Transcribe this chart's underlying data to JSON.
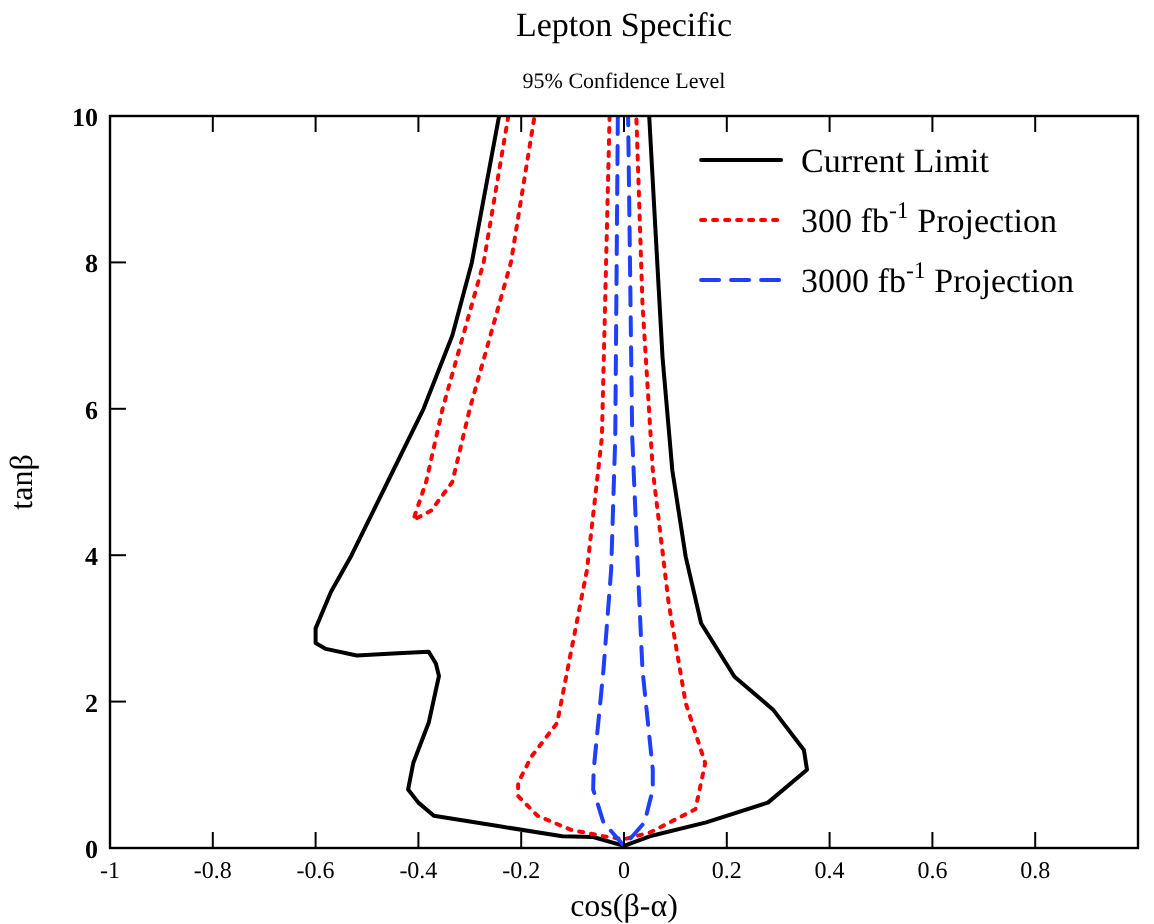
{
  "chart_data": {
    "type": "line",
    "title": "Lepton Specific",
    "subtitle": "95% Confidence Level",
    "xlabel": "cos(β-α)",
    "ylabel": "tanβ",
    "xlim": [
      -1,
      1
    ],
    "ylim": [
      0,
      10
    ],
    "xticks": [
      -1,
      -0.8,
      -0.6,
      -0.4,
      -0.2,
      0,
      0.2,
      0.4,
      0.6,
      0.8
    ],
    "yticks": [
      0,
      2,
      4,
      6,
      8,
      10
    ],
    "legend": "top right",
    "grid": false,
    "series": [
      {
        "name": "Current Limit",
        "color": "#000000",
        "line_style": "solid",
        "x": [
          -0.243,
          -0.296,
          -0.334,
          -0.39,
          -0.46,
          -0.53,
          -0.57,
          -0.6,
          -0.6,
          -0.58,
          -0.52,
          -0.44,
          -0.38,
          -0.366,
          -0.36,
          -0.38,
          -0.41,
          -0.42,
          -0.4,
          -0.37,
          -0.245,
          -0.12,
          -0.06,
          0,
          0.05,
          0.16,
          0.28,
          0.356,
          0.35,
          0.29,
          0.215,
          0.15,
          0.12,
          0.094,
          0.075,
          0.062,
          0.049
        ],
        "values": [
          10,
          8,
          7,
          6,
          5,
          4,
          3.5,
          3,
          2.8,
          2.72,
          2.63,
          2.66,
          2.68,
          2.52,
          2.35,
          1.71,
          1.16,
          0.8,
          0.62,
          0.44,
          0.3,
          0.16,
          0.15,
          0.03,
          0.16,
          0.35,
          0.62,
          1.07,
          1.34,
          1.89,
          2.34,
          3.07,
          3.98,
          5.16,
          6.7,
          8.34,
          10
        ]
      },
      {
        "name": "300 fb$^{-1}$ Projection",
        "color": "#ff0000",
        "line_style": "dotted",
        "x": [
          -0.225,
          -0.273,
          -0.353,
          -0.385,
          -0.41,
          -0.375,
          -0.334,
          -0.3,
          -0.22,
          -0.174,
          null,
          -0.028,
          -0.043,
          -0.072,
          -0.11,
          -0.13,
          -0.18,
          -0.206,
          -0.206,
          -0.168,
          -0.104,
          -0.04,
          0,
          0.05,
          0.139,
          0.158,
          0.12,
          0.087,
          0.056,
          0.036,
          0.024
        ],
        "values": [
          10,
          8,
          6,
          5,
          4.48,
          4.61,
          5,
          6,
          8,
          10,
          null,
          10,
          5.61,
          3.8,
          2.43,
          1.71,
          1.25,
          0.89,
          0.71,
          0.44,
          0.25,
          0.16,
          0.12,
          0.21,
          0.53,
          1.16,
          1.98,
          3.34,
          5.16,
          7.43,
          10
        ]
      },
      {
        "name": "3000 fb$^{-1}$ Projection",
        "color": "#1f3fff",
        "line_style": "dashed",
        "x": [
          -0.012,
          -0.017,
          -0.025,
          -0.04,
          -0.059,
          -0.06,
          -0.04,
          0,
          0.04,
          0.056,
          0.056,
          0.036,
          0.027,
          0.016,
          0.008
        ],
        "values": [
          10,
          5.61,
          3.8,
          2.43,
          1.07,
          0.8,
          0.35,
          0.03,
          0.35,
          0.8,
          1.07,
          2.43,
          3.8,
          5.61,
          10
        ]
      }
    ]
  }
}
